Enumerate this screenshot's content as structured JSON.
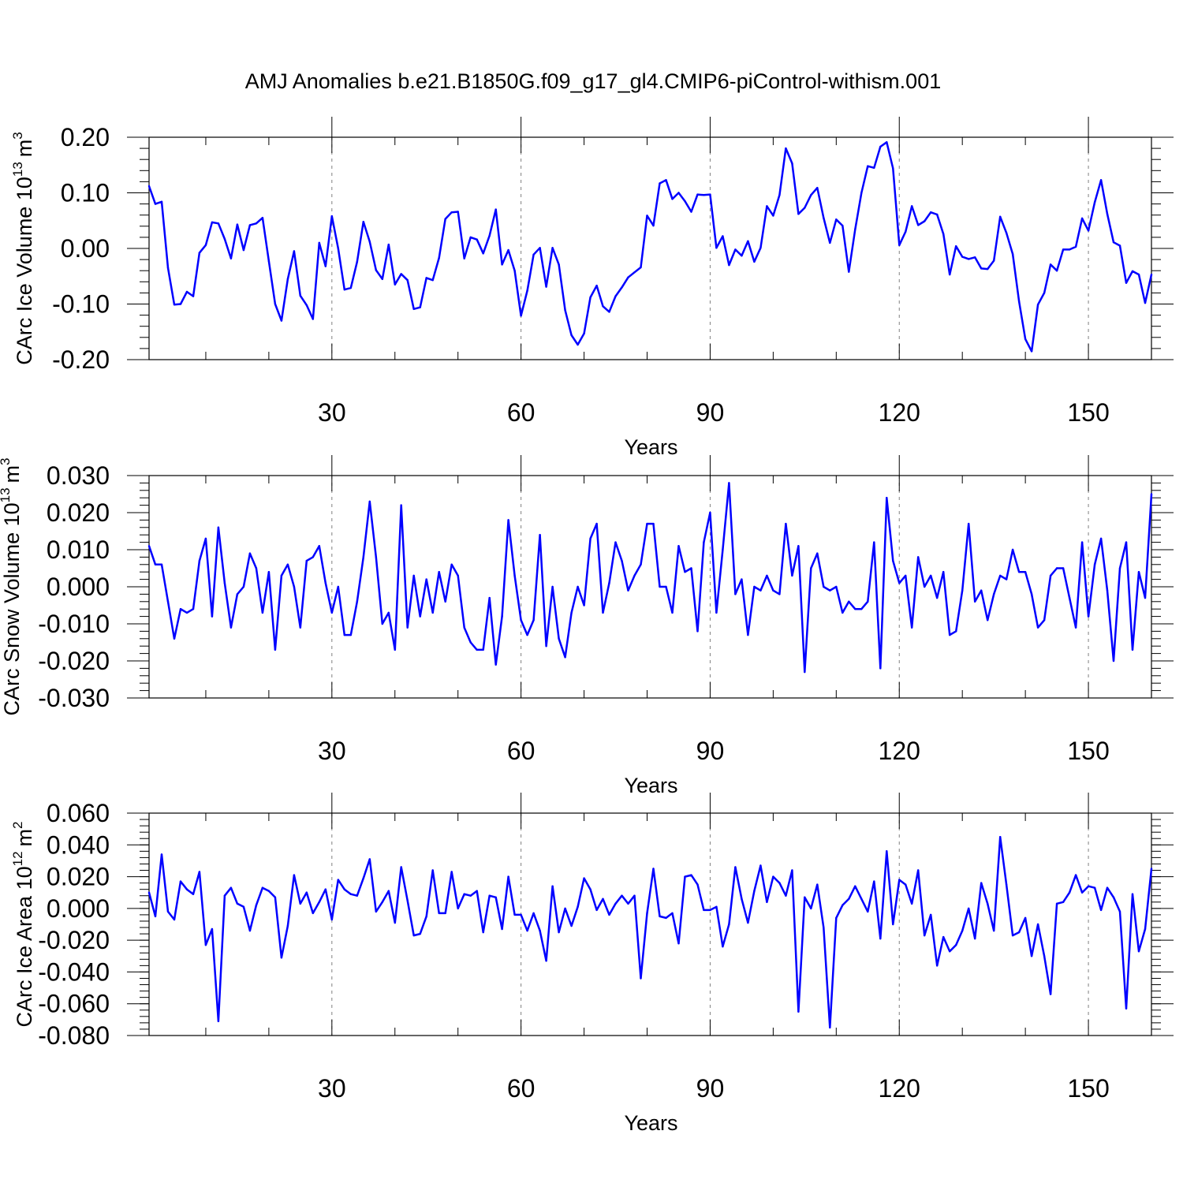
{
  "title": "AMJ Anomalies b.e21.B1850G.f09_g17_gl4.CMIP6-piControl-withism.001",
  "colors": {
    "line": "#0000ff",
    "frame": "#000000",
    "grid": "#808080"
  },
  "chart_data": [
    {
      "type": "line",
      "xlabel": "Years",
      "ylabel": "CArc Ice Volume 10",
      "ylabel_exponent": "13",
      "ylabel_unit": "m",
      "ylabel_unit_exponent": "3",
      "xlim": [
        1,
        160
      ],
      "ylim": [
        -0.2,
        0.2
      ],
      "xticks": [
        30,
        60,
        90,
        120,
        150
      ],
      "xtick_labels": [
        "30",
        "60",
        "90",
        "120",
        "150"
      ],
      "yticks": [
        -0.2,
        -0.1,
        0.0,
        0.1,
        0.2
      ],
      "ytick_labels": [
        "-0.20",
        "-0.10",
        "0.00",
        "0.10",
        "0.20"
      ],
      "y_minor_step": 0.02,
      "grid": "dashed vertical at major x ticks",
      "x": [
        1,
        2,
        3,
        4,
        5,
        6,
        7,
        8,
        9,
        10,
        11,
        12,
        13,
        14,
        15,
        16,
        17,
        18,
        19,
        20,
        21,
        22,
        23,
        24,
        25,
        26,
        27,
        28,
        29,
        30,
        31,
        32,
        33,
        34,
        35,
        36,
        37,
        38,
        39,
        40,
        41,
        42,
        43,
        44,
        45,
        46,
        47,
        48,
        49,
        50,
        51,
        52,
        53,
        54,
        55,
        56,
        57,
        58,
        59,
        60,
        61,
        62,
        63,
        64,
        65,
        66,
        67,
        68,
        69,
        70,
        71,
        72,
        73,
        74,
        75,
        76,
        77,
        78,
        79,
        80,
        81,
        82,
        83,
        84,
        85,
        86,
        87,
        88,
        89,
        90,
        91,
        92,
        93,
        94,
        95,
        96,
        97,
        98,
        99,
        100,
        101,
        102,
        103,
        104,
        105,
        106,
        107,
        108,
        109,
        110,
        111,
        112,
        113,
        114,
        115,
        116,
        117,
        118,
        119,
        120,
        121,
        122,
        123,
        124,
        125,
        126,
        127,
        128,
        129,
        130,
        131,
        132,
        133,
        134,
        135,
        136,
        137,
        138,
        139,
        140,
        141,
        142,
        143,
        144,
        145,
        146,
        147,
        148,
        149,
        150,
        151,
        152,
        153,
        154,
        155,
        156,
        157,
        158,
        159,
        160
      ],
      "y": [
        0.112,
        0.08,
        0.084,
        -0.035,
        -0.101,
        -0.1,
        -0.078,
        -0.086,
        -0.008,
        0.006,
        0.047,
        0.045,
        0.017,
        -0.018,
        0.043,
        -0.003,
        0.042,
        0.045,
        0.055,
        -0.023,
        -0.1,
        -0.13,
        -0.055,
        -0.005,
        -0.085,
        -0.102,
        -0.127,
        0.01,
        -0.032,
        0.058,
        0.0,
        -0.074,
        -0.071,
        -0.024,
        0.048,
        0.012,
        -0.039,
        -0.055,
        0.007,
        -0.065,
        -0.046,
        -0.057,
        -0.109,
        -0.106,
        -0.053,
        -0.057,
        -0.017,
        0.053,
        0.065,
        0.066,
        -0.018,
        0.02,
        0.016,
        -0.009,
        0.023,
        0.07,
        -0.029,
        -0.003,
        -0.04,
        -0.121,
        -0.076,
        -0.011,
        0.001,
        -0.069,
        0.001,
        -0.029,
        -0.111,
        -0.156,
        -0.173,
        -0.153,
        -0.088,
        -0.067,
        -0.104,
        -0.114,
        -0.086,
        -0.07,
        -0.052,
        -0.043,
        -0.034,
        0.059,
        0.041,
        0.117,
        0.123,
        0.089,
        0.1,
        0.085,
        0.066,
        0.097,
        0.096,
        0.097,
        0.001,
        0.022,
        -0.03,
        -0.002,
        -0.013,
        0.013,
        -0.024,
        0.001,
        0.076,
        0.059,
        0.096,
        0.18,
        0.153,
        0.062,
        0.073,
        0.096,
        0.109,
        0.055,
        0.01,
        0.052,
        0.041,
        -0.042,
        0.034,
        0.1,
        0.148,
        0.145,
        0.183,
        0.191,
        0.144,
        0.006,
        0.03,
        0.076,
        0.042,
        0.049,
        0.065,
        0.061,
        0.026,
        -0.047,
        0.004,
        -0.015,
        -0.019,
        -0.016,
        -0.036,
        -0.037,
        -0.022,
        0.057,
        0.028,
        -0.01,
        -0.095,
        -0.163,
        -0.185,
        -0.101,
        -0.08,
        -0.029,
        -0.04,
        -0.002,
        -0.002,
        0.003,
        0.054,
        0.032,
        0.083,
        0.123,
        0.062,
        0.011,
        0.005,
        -0.062,
        -0.041,
        -0.047,
        -0.098,
        -0.047
      ]
    },
    {
      "type": "line",
      "xlabel": "Years",
      "ylabel": "CArc Snow Volume 10",
      "ylabel_exponent": "13",
      "ylabel_unit": "m",
      "ylabel_unit_exponent": "3",
      "xlim": [
        1,
        160
      ],
      "ylim": [
        -0.03,
        0.03
      ],
      "xticks": [
        30,
        60,
        90,
        120,
        150
      ],
      "xtick_labels": [
        "30",
        "60",
        "90",
        "120",
        "150"
      ],
      "yticks": [
        -0.03,
        -0.02,
        -0.01,
        0.0,
        0.01,
        0.02,
        0.03
      ],
      "ytick_labels": [
        "-0.030",
        "-0.020",
        "-0.010",
        "0.000",
        "0.010",
        "0.020",
        "0.030"
      ],
      "y_minor_step": 0.002,
      "grid": "dashed vertical at major x ticks",
      "x": [
        1,
        2,
        3,
        4,
        5,
        6,
        7,
        8,
        9,
        10,
        11,
        12,
        13,
        14,
        15,
        16,
        17,
        18,
        19,
        20,
        21,
        22,
        23,
        24,
        25,
        26,
        27,
        28,
        29,
        30,
        31,
        32,
        33,
        34,
        35,
        36,
        37,
        38,
        39,
        40,
        41,
        42,
        43,
        44,
        45,
        46,
        47,
        48,
        49,
        50,
        51,
        52,
        53,
        54,
        55,
        56,
        57,
        58,
        59,
        60,
        61,
        62,
        63,
        64,
        65,
        66,
        67,
        68,
        69,
        70,
        71,
        72,
        73,
        74,
        75,
        76,
        77,
        78,
        79,
        80,
        81,
        82,
        83,
        84,
        85,
        86,
        87,
        88,
        89,
        90,
        91,
        92,
        93,
        94,
        95,
        96,
        97,
        98,
        99,
        100,
        101,
        102,
        103,
        104,
        105,
        106,
        107,
        108,
        109,
        110,
        111,
        112,
        113,
        114,
        115,
        116,
        117,
        118,
        119,
        120,
        121,
        122,
        123,
        124,
        125,
        126,
        127,
        128,
        129,
        130,
        131,
        132,
        133,
        134,
        135,
        136,
        137,
        138,
        139,
        140,
        141,
        142,
        143,
        144,
        145,
        146,
        147,
        148,
        149,
        150,
        151,
        152,
        153,
        154,
        155,
        156,
        157,
        158,
        159,
        160
      ],
      "y": [
        0.011,
        0.006,
        0.006,
        -0.004,
        -0.014,
        -0.006,
        -0.007,
        -0.006,
        0.007,
        0.013,
        -0.008,
        0.016,
        0.001,
        -0.011,
        -0.002,
        0.0,
        0.009,
        0.005,
        -0.007,
        0.004,
        -0.017,
        0.003,
        0.006,
        0.0,
        -0.011,
        0.007,
        0.008,
        0.011,
        0.001,
        -0.007,
        0.0,
        -0.013,
        -0.013,
        -0.004,
        0.008,
        0.023,
        0.008,
        -0.01,
        -0.007,
        -0.017,
        0.022,
        -0.011,
        0.003,
        -0.008,
        0.002,
        -0.007,
        0.004,
        -0.004,
        0.006,
        0.003,
        -0.011,
        -0.015,
        -0.017,
        -0.017,
        -0.003,
        -0.021,
        -0.008,
        0.018,
        0.003,
        -0.009,
        -0.013,
        -0.009,
        0.014,
        -0.016,
        0.0,
        -0.014,
        -0.019,
        -0.007,
        0.0,
        -0.005,
        0.013,
        0.017,
        -0.007,
        0.001,
        0.012,
        0.007,
        -0.001,
        0.003,
        0.006,
        0.017,
        0.017,
        0.0,
        0.0,
        -0.007,
        0.011,
        0.004,
        0.005,
        -0.012,
        0.012,
        0.02,
        -0.007,
        0.01,
        0.028,
        -0.002,
        0.002,
        -0.013,
        0.0,
        -0.001,
        0.003,
        -0.001,
        -0.002,
        0.017,
        0.003,
        0.011,
        -0.023,
        0.005,
        0.009,
        0.0,
        -0.001,
        0.0,
        -0.007,
        -0.004,
        -0.006,
        -0.006,
        -0.004,
        0.012,
        -0.022,
        0.024,
        0.007,
        0.001,
        0.003,
        -0.011,
        0.008,
        0.0,
        0.003,
        -0.003,
        0.004,
        -0.013,
        -0.012,
        -0.001,
        0.017,
        -0.004,
        -0.001,
        -0.009,
        -0.002,
        0.003,
        0.002,
        0.01,
        0.004,
        0.004,
        -0.002,
        -0.011,
        -0.009,
        0.003,
        0.005,
        0.005,
        -0.003,
        -0.011,
        0.012,
        -0.008,
        0.006,
        0.013,
        -0.001,
        -0.02,
        0.005,
        0.012,
        -0.017,
        0.004,
        -0.003,
        0.025
      ]
    },
    {
      "type": "line",
      "xlabel": "Years",
      "ylabel": "CArc Ice Area 10",
      "ylabel_exponent": "12",
      "ylabel_unit": "m",
      "ylabel_unit_exponent": "2",
      "xlim": [
        1,
        160
      ],
      "ylim": [
        -0.08,
        0.06
      ],
      "xticks": [
        30,
        60,
        90,
        120,
        150
      ],
      "xtick_labels": [
        "30",
        "60",
        "90",
        "120",
        "150"
      ],
      "yticks": [
        -0.08,
        -0.06,
        -0.04,
        -0.02,
        0.0,
        0.02,
        0.04,
        0.06
      ],
      "ytick_labels": [
        "-0.080",
        "-0.060",
        "-0.040",
        "-0.020",
        "0.000",
        "0.020",
        "0.040",
        "0.060"
      ],
      "y_minor_step": 0.004,
      "grid": "dashed vertical at major x ticks",
      "x": [
        1,
        2,
        3,
        4,
        5,
        6,
        7,
        8,
        9,
        10,
        11,
        12,
        13,
        14,
        15,
        16,
        17,
        18,
        19,
        20,
        21,
        22,
        23,
        24,
        25,
        26,
        27,
        28,
        29,
        30,
        31,
        32,
        33,
        34,
        35,
        36,
        37,
        38,
        39,
        40,
        41,
        42,
        43,
        44,
        45,
        46,
        47,
        48,
        49,
        50,
        51,
        52,
        53,
        54,
        55,
        56,
        57,
        58,
        59,
        60,
        61,
        62,
        63,
        64,
        65,
        66,
        67,
        68,
        69,
        70,
        71,
        72,
        73,
        74,
        75,
        76,
        77,
        78,
        79,
        80,
        81,
        82,
        83,
        84,
        85,
        86,
        87,
        88,
        89,
        90,
        91,
        92,
        93,
        94,
        95,
        96,
        97,
        98,
        99,
        100,
        101,
        102,
        103,
        104,
        105,
        106,
        107,
        108,
        109,
        110,
        111,
        112,
        113,
        114,
        115,
        116,
        117,
        118,
        119,
        120,
        121,
        122,
        123,
        124,
        125,
        126,
        127,
        128,
        129,
        130,
        131,
        132,
        133,
        134,
        135,
        136,
        137,
        138,
        139,
        140,
        141,
        142,
        143,
        144,
        145,
        146,
        147,
        148,
        149,
        150,
        151,
        152,
        153,
        154,
        155,
        156,
        157,
        158,
        159,
        160
      ],
      "y": [
        0.01,
        -0.005,
        0.034,
        -0.002,
        -0.007,
        0.017,
        0.012,
        0.009,
        0.023,
        -0.023,
        -0.013,
        -0.071,
        0.008,
        0.013,
        0.003,
        0.001,
        -0.014,
        0.002,
        0.013,
        0.011,
        0.007,
        -0.031,
        -0.011,
        0.021,
        0.003,
        0.01,
        -0.003,
        0.004,
        0.012,
        -0.007,
        0.018,
        0.012,
        0.009,
        0.008,
        0.019,
        0.031,
        -0.002,
        0.004,
        0.011,
        -0.009,
        0.026,
        0.005,
        -0.017,
        -0.016,
        -0.005,
        0.024,
        -0.003,
        -0.003,
        0.023,
        0.0,
        0.009,
        0.008,
        0.011,
        -0.015,
        0.008,
        0.007,
        -0.013,
        0.02,
        -0.004,
        -0.004,
        -0.014,
        -0.003,
        -0.014,
        -0.033,
        0.014,
        -0.015,
        0.0,
        -0.011,
        0.001,
        0.019,
        0.012,
        -0.001,
        0.006,
        -0.004,
        0.003,
        0.008,
        0.003,
        0.008,
        -0.044,
        -0.003,
        0.025,
        -0.005,
        -0.006,
        -0.003,
        -0.022,
        0.02,
        0.021,
        0.015,
        -0.001,
        -0.001,
        0.001,
        -0.024,
        -0.01,
        0.026,
        0.006,
        -0.009,
        0.011,
        0.027,
        0.004,
        0.02,
        0.016,
        0.008,
        0.024,
        -0.065,
        0.007,
        0.0,
        0.015,
        -0.012,
        -0.075,
        -0.006,
        0.002,
        0.006,
        0.014,
        0.006,
        -0.002,
        0.017,
        -0.019,
        0.036,
        -0.01,
        0.018,
        0.015,
        0.003,
        0.024,
        -0.017,
        -0.004,
        -0.036,
        -0.018,
        -0.027,
        -0.023,
        -0.014,
        0.0,
        -0.019,
        0.016,
        0.003,
        -0.014,
        0.045,
        0.015,
        -0.017,
        -0.015,
        -0.006,
        -0.03,
        -0.01,
        -0.03,
        -0.054,
        0.003,
        0.004,
        0.01,
        0.021,
        0.01,
        0.014,
        0.013,
        -0.001,
        0.013,
        0.007,
        -0.002,
        -0.063,
        0.009,
        -0.027,
        -0.013,
        0.025
      ]
    }
  ]
}
